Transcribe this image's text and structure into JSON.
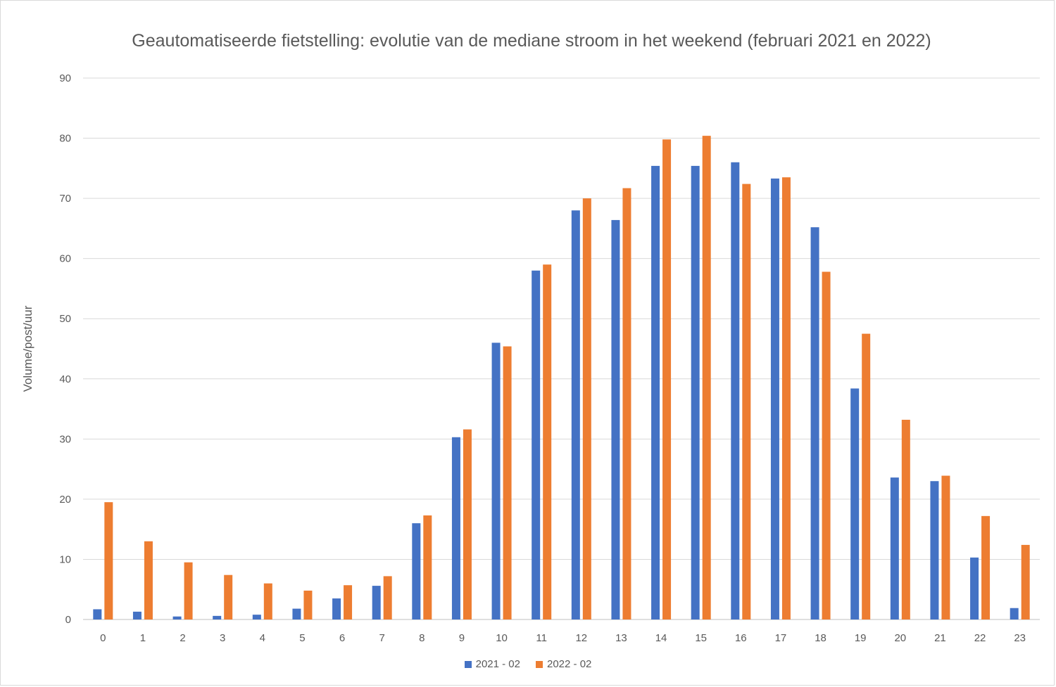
{
  "chart_data": {
    "type": "bar",
    "title": "Geautomatiseerde fietstelling: evolutie van de mediane stroom in het weekend (februari 2021 en 2022)",
    "xlabel": "",
    "ylabel": "Volume/post/uur",
    "ylim": [
      0,
      90
    ],
    "yticks": [
      0,
      10,
      20,
      30,
      40,
      50,
      60,
      70,
      80,
      90
    ],
    "grid": true,
    "legend_position": "bottom",
    "categories": [
      "0",
      "1",
      "2",
      "3",
      "4",
      "5",
      "6",
      "7",
      "8",
      "9",
      "10",
      "11",
      "12",
      "13",
      "14",
      "15",
      "16",
      "17",
      "18",
      "19",
      "20",
      "21",
      "22",
      "23"
    ],
    "series": [
      {
        "name": "2021 - 02",
        "color": "#4472c4",
        "values": [
          1.7,
          1.3,
          0.5,
          0.6,
          0.8,
          1.8,
          3.5,
          5.6,
          16.0,
          30.3,
          46.0,
          58.0,
          68.0,
          66.4,
          75.4,
          75.4,
          76.0,
          73.3,
          65.2,
          38.4,
          23.6,
          23.0,
          10.3,
          1.9
        ]
      },
      {
        "name": "2022 - 02",
        "color": "#ed7d31",
        "values": [
          19.5,
          13.0,
          9.5,
          7.4,
          6.0,
          4.8,
          5.7,
          7.2,
          17.3,
          31.6,
          45.4,
          59.0,
          70.0,
          71.7,
          79.8,
          80.4,
          72.4,
          73.5,
          57.8,
          47.5,
          33.2,
          23.9,
          17.2,
          12.4
        ]
      }
    ]
  }
}
